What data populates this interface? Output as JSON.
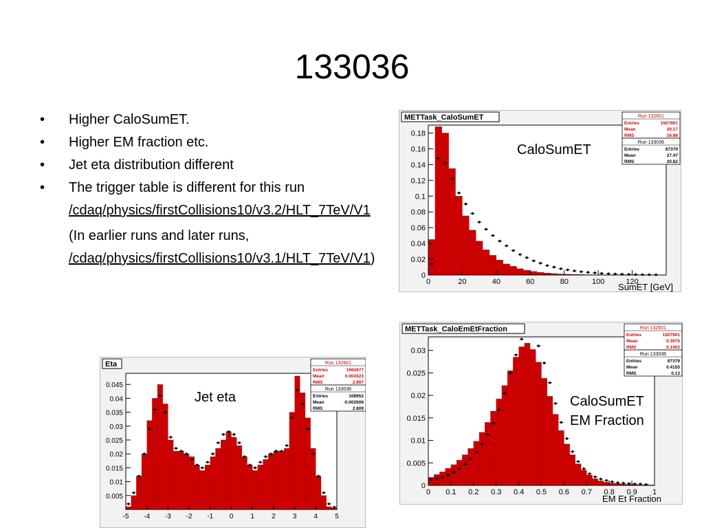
{
  "slide": {
    "title": "133036",
    "bullets": [
      {
        "text": "Higher CaloSumET."
      },
      {
        "text": "Higher EM fraction etc."
      },
      {
        "text": "Jet eta distribution different"
      },
      {
        "text": "The trigger table is different for this run",
        "link": "/cdaq/physics/firstCollisions10/v3.2/HLT_7TeV/V1"
      }
    ],
    "note_prefix": "(In earlier runs and later runs,",
    "note_link": "/cdaq/physics/firstCollisions10/v3.1/HLT_7TeV/V1",
    "note_suffix": ")",
    "bullet_symbol": "•"
  },
  "colors": {
    "hist_fill": "#cc0000",
    "frame": "#000000",
    "stats_red": "#cc0000",
    "panel_bg": "#f2f2f2"
  },
  "chart_data": [
    {
      "type": "bar",
      "title": "METTask_CaloSumET",
      "annotation": "CaloSumET",
      "xlabel": "SumET [GeV]",
      "xlim": [
        0,
        140
      ],
      "ylim": [
        0,
        0.19
      ],
      "xticks": [
        0,
        20,
        40,
        60,
        80,
        100,
        120
      ],
      "yticks": [
        0,
        0.02,
        0.04,
        0.06,
        0.08,
        0.1,
        0.12,
        0.14,
        0.16,
        0.18
      ],
      "ytick_labels": [
        "0",
        "0.02",
        "0.04",
        "0.06",
        "0.08",
        "0.1",
        "0.12",
        "0.14",
        "0.16",
        "0.18"
      ],
      "stats": [
        {
          "header": "Run 132601",
          "color": "red",
          "rows": [
            [
              "Entries",
              "1507901"
            ],
            [
              "Mean",
              "20.17"
            ],
            [
              "RMS",
              "16.88"
            ]
          ]
        },
        {
          "header": "Run 133036",
          "color": "black",
          "rows": [
            [
              "Entries",
              "87379"
            ],
            [
              "Mean",
              "27.47"
            ],
            [
              "RMS",
              "20.82"
            ]
          ]
        }
      ],
      "series": [
        {
          "name": "Run 132601",
          "style": "filled",
          "x": [
            0,
            4,
            8,
            12,
            16,
            20,
            24,
            28,
            32,
            36,
            40,
            44,
            48,
            52,
            56,
            60,
            64,
            68,
            72,
            76,
            80,
            84,
            88,
            92,
            96,
            100
          ],
          "values": [
            0.045,
            0.188,
            0.18,
            0.135,
            0.1,
            0.075,
            0.057,
            0.043,
            0.032,
            0.025,
            0.019,
            0.014,
            0.011,
            0.008,
            0.006,
            0.0045,
            0.0034,
            0.0025,
            0.0018,
            0.0013,
            0.001,
            0.0008,
            0.0006,
            0.0004,
            0.0003,
            0.0002
          ]
        },
        {
          "name": "Run 133036",
          "style": "points",
          "x": [
            2,
            6,
            10,
            14,
            18,
            22,
            26,
            30,
            34,
            38,
            42,
            46,
            50,
            54,
            58,
            62,
            66,
            70,
            74,
            78,
            82,
            86,
            90,
            94,
            98,
            102,
            106,
            110,
            114,
            118,
            122,
            126,
            130,
            134
          ],
          "values": [
            0.014,
            0.148,
            0.142,
            0.122,
            0.104,
            0.09,
            0.078,
            0.067,
            0.058,
            0.05,
            0.043,
            0.037,
            0.031,
            0.026,
            0.022,
            0.018,
            0.015,
            0.012,
            0.01,
            0.008,
            0.0065,
            0.0052,
            0.0042,
            0.0034,
            0.0027,
            0.0021,
            0.0017,
            0.0013,
            0.001,
            0.0008,
            0.0006,
            0.0005,
            0.0004,
            0.0003
          ]
        }
      ]
    },
    {
      "type": "bar",
      "title": "METTask_CaloEmEtFraction",
      "annotation_lines": [
        "CaloSumET",
        "EM Fraction"
      ],
      "xlabel": "EM Et Fraction",
      "xlim": [
        0,
        1
      ],
      "ylim": [
        0,
        0.033
      ],
      "xticks": [
        0,
        0.1,
        0.2,
        0.3,
        0.4,
        0.5,
        0.6,
        0.7,
        0.8,
        0.9,
        1
      ],
      "xtick_labels": [
        "0",
        "0.1",
        "0.2",
        "0.3",
        "0.4",
        "0.5",
        "0.6",
        "0.7",
        "0.8",
        "0.9",
        "1"
      ],
      "yticks": [
        0,
        0.005,
        0.01,
        0.015,
        0.02,
        0.025,
        0.03
      ],
      "ytick_labels": [
        "0",
        "0.005",
        "0.01",
        "0.015",
        "0.02",
        "0.025",
        "0.03"
      ],
      "stats": [
        {
          "header": "Run 132601",
          "color": "red",
          "rows": [
            [
              "Entries",
              "1507901"
            ],
            [
              "Mean",
              "0.3975"
            ],
            [
              "RMS",
              "0.1402"
            ]
          ]
        },
        {
          "header": "Run 133036",
          "color": "black",
          "rows": [
            [
              "Entries",
              "87379"
            ],
            [
              "Mean",
              "0.4155"
            ],
            [
              "RMS",
              "0.13"
            ]
          ]
        }
      ],
      "series": [
        {
          "name": "Run 132601",
          "style": "filled",
          "x": [
            0,
            0.025,
            0.05,
            0.075,
            0.1,
            0.125,
            0.15,
            0.175,
            0.2,
            0.225,
            0.25,
            0.275,
            0.3,
            0.325,
            0.35,
            0.375,
            0.4,
            0.425,
            0.45,
            0.475,
            0.5,
            0.525,
            0.55,
            0.575,
            0.6,
            0.625,
            0.65,
            0.675,
            0.7,
            0.725,
            0.75,
            0.775,
            0.8,
            0.825,
            0.85,
            0.875,
            0.9,
            0.925,
            0.95,
            0.975
          ],
          "values": [
            0.0018,
            0.0024,
            0.003,
            0.0038,
            0.0046,
            0.0056,
            0.0068,
            0.0082,
            0.0098,
            0.0118,
            0.014,
            0.0165,
            0.0192,
            0.0222,
            0.0255,
            0.0285,
            0.0308,
            0.0316,
            0.0302,
            0.0274,
            0.0238,
            0.0198,
            0.0158,
            0.0122,
            0.0092,
            0.0068,
            0.0048,
            0.0034,
            0.0023,
            0.0015,
            0.001,
            0.0007,
            0.0005,
            0.0004,
            0.0003,
            0.0002,
            0.0002,
            0.0001,
            0.0001,
            0.0001
          ]
        },
        {
          "name": "Run 133036",
          "style": "points",
          "x": [
            0.0125,
            0.0375,
            0.0625,
            0.0875,
            0.1125,
            0.1375,
            0.1625,
            0.1875,
            0.2125,
            0.2375,
            0.2625,
            0.2875,
            0.3125,
            0.3375,
            0.3625,
            0.3875,
            0.4125,
            0.4375,
            0.4625,
            0.4875,
            0.5125,
            0.5375,
            0.5625,
            0.5875,
            0.6125,
            0.6375,
            0.6625,
            0.6875,
            0.7125,
            0.7375,
            0.7625,
            0.7875,
            0.8125,
            0.8375,
            0.8625,
            0.8875,
            0.9125,
            0.9375,
            0.9625
          ],
          "values": [
            0.0012,
            0.0015,
            0.0018,
            0.0023,
            0.0029,
            0.0037,
            0.0047,
            0.0059,
            0.0074,
            0.0092,
            0.0113,
            0.0138,
            0.0168,
            0.0205,
            0.025,
            0.029,
            0.0325,
            0.034,
            0.0335,
            0.031,
            0.0272,
            0.0228,
            0.0182,
            0.014,
            0.0104,
            0.0075,
            0.0053,
            0.0037,
            0.0026,
            0.0019,
            0.0014,
            0.0011,
            0.0008,
            0.0006,
            0.0005,
            0.0004,
            0.0003,
            0.0003,
            0.0002
          ]
        }
      ]
    },
    {
      "type": "bar",
      "title": "Eta",
      "annotation": "Jet eta",
      "xlabel": "",
      "xlim": [
        -5,
        5
      ],
      "ylim": [
        0,
        0.049
      ],
      "xticks": [
        -5,
        -4,
        -3,
        -2,
        -1,
        0,
        1,
        2,
        3,
        4,
        5
      ],
      "xtick_labels": [
        "-5",
        "-4",
        "-3",
        "-2",
        "-1",
        "0",
        "1",
        "2",
        "3",
        "4",
        "5"
      ],
      "yticks": [
        0.005,
        0.01,
        0.015,
        0.02,
        0.025,
        0.03,
        0.035,
        0.04,
        0.045
      ],
      "ytick_labels": [
        "0.005",
        "0.01",
        "0.015",
        "0.02",
        "0.025",
        "0.03",
        "0.035",
        "0.04",
        "0.045"
      ],
      "stats": [
        {
          "header": "Run 132601",
          "color": "red",
          "rows": [
            [
              "Entries",
              "1062677"
            ],
            [
              "Mean",
              "0.004323"
            ],
            [
              "RMS",
              "2.897"
            ]
          ]
        },
        {
          "header": "Run 133036",
          "color": "black",
          "rows": [
            [
              "Entries",
              "108952"
            ],
            [
              "Mean",
              "-0.002606"
            ],
            [
              "RMS",
              "2.809"
            ]
          ]
        }
      ],
      "series": [
        {
          "name": "Run 132601",
          "style": "filled",
          "x": [
            -5,
            -4.75,
            -4.5,
            -4.25,
            -4,
            -3.75,
            -3.5,
            -3.25,
            -3,
            -2.75,
            -2.5,
            -2.25,
            -2,
            -1.75,
            -1.5,
            -1.25,
            -1,
            -0.75,
            -0.5,
            -0.25,
            0,
            0.25,
            0.5,
            0.75,
            1,
            1.25,
            1.5,
            1.75,
            2,
            2.25,
            2.5,
            2.75,
            3,
            3.25,
            3.5,
            3.75,
            4,
            4.25,
            4.5,
            4.75
          ],
          "values": [
            0.001,
            0.005,
            0.012,
            0.02,
            0.032,
            0.04,
            0.045,
            0.038,
            0.025,
            0.021,
            0.021,
            0.02,
            0.019,
            0.016,
            0.014,
            0.016,
            0.019,
            0.022,
            0.025,
            0.028,
            0.026,
            0.023,
            0.019,
            0.016,
            0.014,
            0.016,
            0.018,
            0.02,
            0.021,
            0.021,
            0.022,
            0.035,
            0.048,
            0.042,
            0.033,
            0.022,
            0.012,
            0.005,
            0.001,
            0.0005
          ]
        },
        {
          "name": "Run 133036",
          "style": "points",
          "x": [
            -4.875,
            -4.625,
            -4.375,
            -4.125,
            -3.875,
            -3.625,
            -3.375,
            -3.125,
            -2.875,
            -2.625,
            -2.375,
            -2.125,
            -1.875,
            -1.625,
            -1.375,
            -1.125,
            -0.875,
            -0.625,
            -0.375,
            -0.125,
            0.125,
            0.375,
            0.625,
            0.875,
            1.125,
            1.375,
            1.625,
            1.875,
            2.125,
            2.375,
            2.625,
            2.875,
            3.125,
            3.375,
            3.625,
            3.875,
            4.125,
            4.375,
            4.625,
            4.875
          ],
          "values": [
            0.002,
            0.006,
            0.012,
            0.02,
            0.029,
            0.036,
            0.041,
            0.035,
            0.026,
            0.022,
            0.021,
            0.02,
            0.018,
            0.016,
            0.015,
            0.017,
            0.02,
            0.024,
            0.027,
            0.028,
            0.027,
            0.024,
            0.019,
            0.016,
            0.015,
            0.017,
            0.019,
            0.02,
            0.021,
            0.021,
            0.023,
            0.033,
            0.043,
            0.038,
            0.029,
            0.02,
            0.012,
            0.006,
            0.002,
            0.0008
          ]
        }
      ]
    }
  ]
}
